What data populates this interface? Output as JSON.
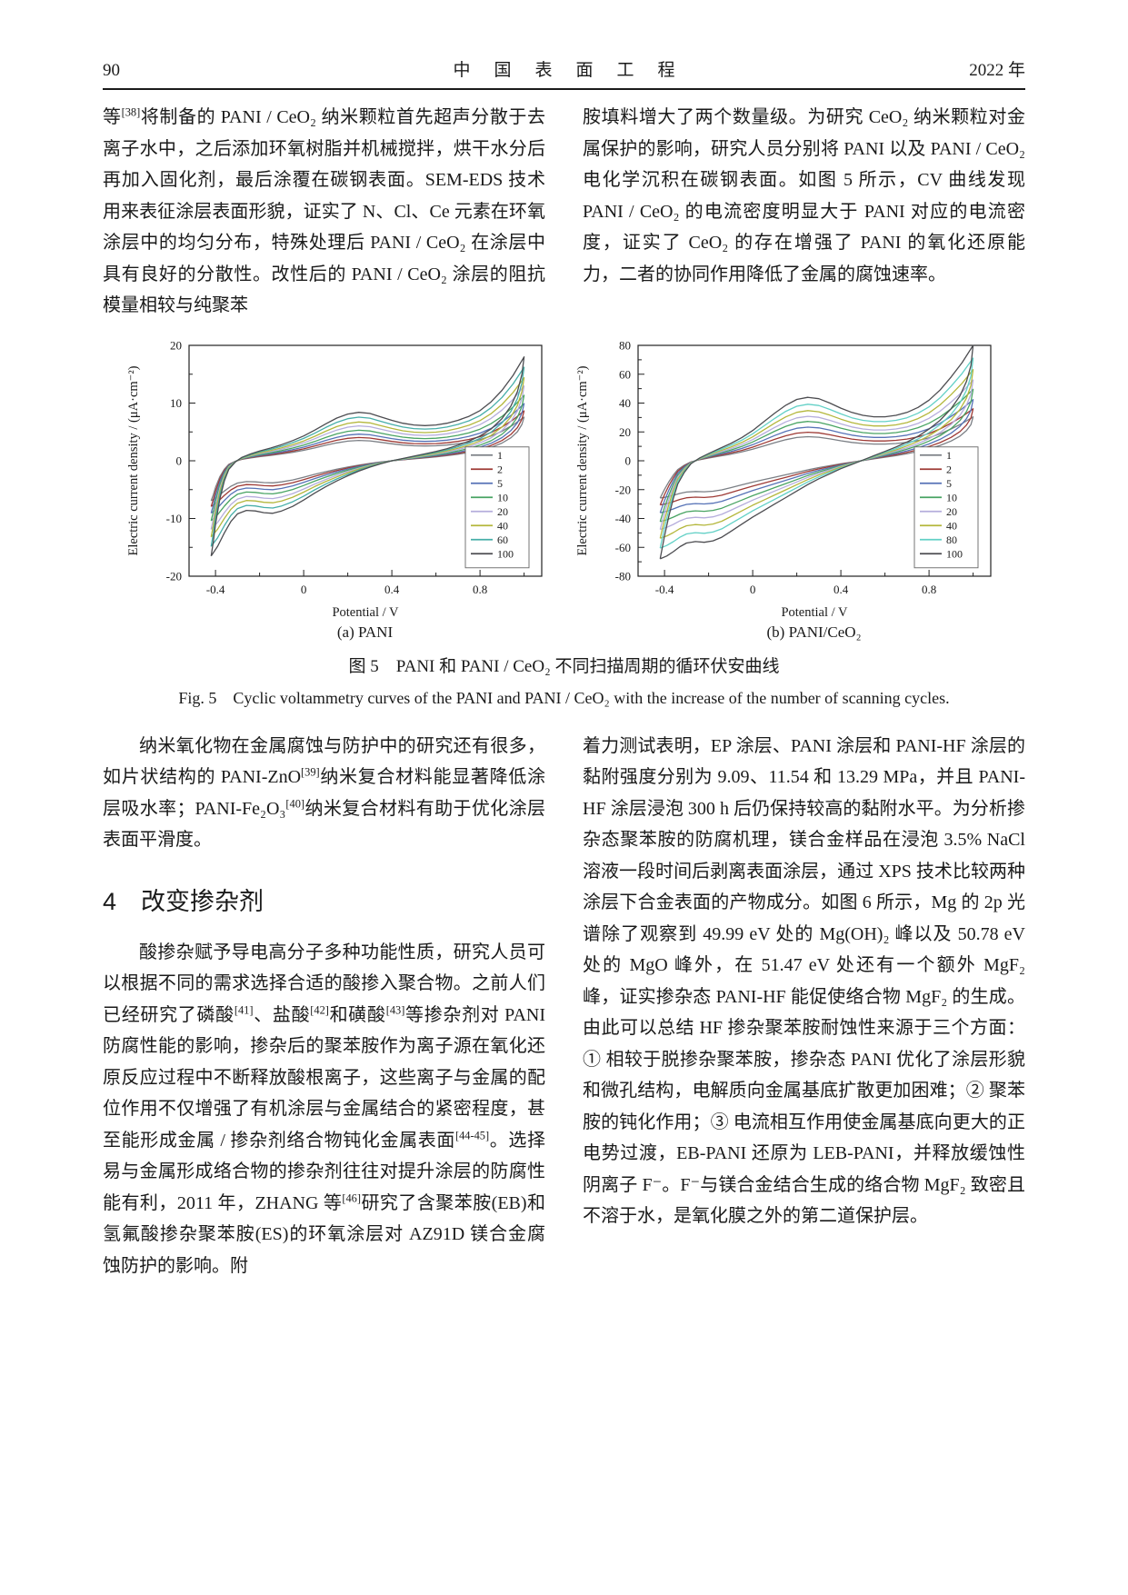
{
  "header": {
    "page_number": "90",
    "journal_title": "中国表面工程",
    "year": "2022 年"
  },
  "body": {
    "top_left": [
      [
        "等",
        ""
      ],
      [
        "[38]",
        "sup"
      ],
      [
        "将制备的 PANI / CeO₂ 纳米颗粒首先超声分散于去离子水中，之后添加环氧树脂并机械搅拌，烘干水分后再加入固化剂，最后涂覆在碳钢表面。SEM-EDS 技术用来表征涂层表面形貌，证实了 N、Cl、Ce 元素在环氧涂层中的均匀分布，特殊处理后 PANI / CeO₂ 在涂层中具有良好的分散性。改性后的 PANI / CeO₂ 涂层的阻抗模量相较与纯聚苯",
        ""
      ]
    ],
    "top_right": [
      [
        "胺填料增大了两个数量级。为研究 CeO₂ 纳米颗粒对金属保护的影响，研究人员分别将 PANI 以及 PANI / CeO₂ 电化学沉积在碳钢表面。如图 5 所示，CV 曲线发现 PANI / CeO₂ 的电流密度明显大于 PANI 对应的电流密度，证实了 CeO₂ 的存在增强了 PANI 的氧化还原能力，二者的协同作用降低了金属的腐蚀速率。",
        ""
      ]
    ],
    "mid_left": [
      [
        "纳米氧化物在金属腐蚀与防护中的研究还有很多，如片状结构的 PANI-ZnO",
        ""
      ],
      [
        "[39]",
        "sup"
      ],
      [
        "纳米复合材料能显著降低涂层吸水率；PANI-Fe₂O₃",
        ""
      ],
      [
        "[40]",
        "sup"
      ],
      [
        "纳米复合材料有助于优化涂层表面平滑度。",
        ""
      ]
    ],
    "section_heading": "4　改变掺杂剂",
    "bottom_left": [
      [
        "酸掺杂赋予导电高分子多种功能性质，研究人员可以根据不同的需求选择合适的酸掺入聚合物。之前人们已经研究了磷酸",
        ""
      ],
      [
        "[41]",
        "sup"
      ],
      [
        "、盐酸",
        ""
      ],
      [
        "[42]",
        "sup"
      ],
      [
        "和磺酸",
        ""
      ],
      [
        "[43]",
        "sup"
      ],
      [
        "等掺杂剂对 PANI 防腐性能的影响，掺杂后的聚苯胺作为离子源在氧化还原反应过程中不断释放酸根离子，这些离子与金属的配位作用不仅增强了有机涂层与金属结合的紧密程度，甚至能形成金属 / 掺杂剂络合物钝化金属表面",
        ""
      ],
      [
        "[44-45]",
        "sup"
      ],
      [
        "。选择易与金属形成络合物的掺杂剂往往对提升涂层的防腐性能有利，2011 年，ZHANG 等",
        ""
      ],
      [
        "[46]",
        "sup"
      ],
      [
        "研究了含聚苯胺(EB)和氢氟酸掺杂聚苯胺(ES)的环氧涂层对 AZ91D 镁合金腐蚀防护的影响。附",
        ""
      ]
    ],
    "bottom_right": [
      [
        "着力测试表明，EP 涂层、PANI 涂层和 PANI-HF 涂层的黏附强度分别为 9.09、11.54 和 13.29 MPa，并且 PANI-HF 涂层浸泡 300 h 后仍保持较高的黏附水平。为分析掺杂态聚苯胺的防腐机理，镁合金样品在浸泡 3.5% NaCl 溶液一段时间后剥离表面涂层，通过 XPS 技术比较两种涂层下合金表面的产物成分。如图 6 所示，Mg 的 2p 光谱除了观察到 49.99 eV 处的 Mg(OH)₂ 峰以及 50.78 eV 处的 MgO 峰外，在 51.47 eV 处还有一个额外 MgF₂ 峰，证实掺杂态 PANI-HF 能促使络合物 MgF₂ 的生成。由此可以总结 HF 掺杂聚苯胺耐蚀性来源于三个方面：① 相较于脱掺杂聚苯胺，掺杂态 PANI 优化了涂层形貌和微孔结构，电解质向金属基底扩散更加困难；② 聚苯胺的钝化作用；③ 电流相互作用使金属基底向更大的正电势过渡，EB-PANI 还原为 LEB-PANI，并释放缓蚀性阴离子 F⁻。F⁻与镁合金结合生成的络合物 MgF₂ 致密且不溶于水，是氧化膜之外的第二道保护层。",
        ""
      ]
    ]
  },
  "figure": {
    "caption_zh": "图 5　PANI 和 PANI / CeO₂ 不同扫描周期的循环伏安曲线",
    "caption_en": "Fig. 5　Cyclic voltammetry curves of the PANI and PANI / CeO₂ with the increase of the number of scanning cycles."
  },
  "chart_data": [
    {
      "type": "line",
      "subcaption": "(a) PANI",
      "xlabel": "Potential / V",
      "ylabel": "Electric current density / (μA·cm⁻²)",
      "xlim": [
        -0.52,
        1.08
      ],
      "ylim": [
        -20,
        20
      ],
      "xticks": [
        -0.4,
        0,
        0.4,
        0.8
      ],
      "yticks": [
        -20,
        -10,
        0,
        10,
        20
      ],
      "xminor": [
        -0.2,
        0.2,
        0.6,
        1.0
      ],
      "yminor": [
        -15,
        -5,
        5,
        15
      ],
      "legend_position": "right-center",
      "series": [
        {
          "name": "1",
          "color": "#7b7f85",
          "scale": 0.42
        },
        {
          "name": "2",
          "color": "#9e3a35",
          "scale": 0.48
        },
        {
          "name": "5",
          "color": "#5672b6",
          "scale": 0.55
        },
        {
          "name": "10",
          "color": "#49a463",
          "scale": 0.63
        },
        {
          "name": "20",
          "color": "#b5addc",
          "scale": 0.72
        },
        {
          "name": "40",
          "color": "#b4b73c",
          "scale": 0.8
        },
        {
          "name": "60",
          "color": "#46aea8",
          "scale": 0.9
        },
        {
          "name": "100",
          "color": "#4c4c50",
          "scale": 1.0
        }
      ],
      "base_loop": [
        [
          -0.42,
          -16.5
        ],
        [
          -0.41,
          -14
        ],
        [
          -0.4,
          -11
        ],
        [
          -0.38,
          -6.5
        ],
        [
          -0.36,
          -3.5
        ],
        [
          -0.34,
          -1.5
        ],
        [
          -0.31,
          -0.2
        ],
        [
          -0.28,
          0.6
        ],
        [
          -0.24,
          1.2
        ],
        [
          -0.2,
          1.7
        ],
        [
          -0.15,
          2.2
        ],
        [
          -0.1,
          2.8
        ],
        [
          -0.05,
          3.5
        ],
        [
          0.0,
          4.3
        ],
        [
          0.05,
          5.3
        ],
        [
          0.1,
          6.4
        ],
        [
          0.15,
          7.4
        ],
        [
          0.2,
          8.1
        ],
        [
          0.25,
          8.4
        ],
        [
          0.3,
          8.2
        ],
        [
          0.35,
          7.6
        ],
        [
          0.4,
          7.0
        ],
        [
          0.45,
          6.5
        ],
        [
          0.5,
          6.2
        ],
        [
          0.55,
          6.1
        ],
        [
          0.6,
          6.2
        ],
        [
          0.65,
          6.5
        ],
        [
          0.7,
          7.0
        ],
        [
          0.75,
          7.7
        ],
        [
          0.8,
          8.7
        ],
        [
          0.85,
          10.2
        ],
        [
          0.9,
          12.2
        ],
        [
          0.95,
          14.8
        ],
        [
          1.0,
          18.0
        ],
        [
          0.99,
          15.0
        ],
        [
          0.97,
          12.0
        ],
        [
          0.94,
          9.5
        ],
        [
          0.9,
          7.3
        ],
        [
          0.85,
          5.5
        ],
        [
          0.8,
          4.3
        ],
        [
          0.75,
          3.4
        ],
        [
          0.7,
          2.7
        ],
        [
          0.65,
          2.1
        ],
        [
          0.6,
          1.6
        ],
        [
          0.55,
          1.2
        ],
        [
          0.5,
          0.8
        ],
        [
          0.45,
          0.4
        ],
        [
          0.4,
          0.0
        ],
        [
          0.35,
          -0.5
        ],
        [
          0.3,
          -1.1
        ],
        [
          0.25,
          -1.8
        ],
        [
          0.2,
          -2.6
        ],
        [
          0.15,
          -3.5
        ],
        [
          0.1,
          -4.5
        ],
        [
          0.05,
          -5.6
        ],
        [
          0.0,
          -6.8
        ],
        [
          -0.05,
          -7.9
        ],
        [
          -0.1,
          -8.7
        ],
        [
          -0.14,
          -9.1
        ],
        [
          -0.18,
          -9.0
        ],
        [
          -0.22,
          -8.7
        ],
        [
          -0.26,
          -8.6
        ],
        [
          -0.3,
          -9.2
        ],
        [
          -0.33,
          -10.5
        ],
        [
          -0.36,
          -12.5
        ],
        [
          -0.39,
          -14.8
        ],
        [
          -0.42,
          -16.5
        ]
      ]
    },
    {
      "type": "line",
      "subcaption": "(b) PANI/CeO₂",
      "xlabel": "Potential / V",
      "ylabel": "Electric current density / (μA·cm⁻²)",
      "xlim": [
        -0.52,
        1.08
      ],
      "ylim": [
        -80,
        80
      ],
      "xticks": [
        -0.4,
        0,
        0.4,
        0.8
      ],
      "yticks": [
        -80,
        -60,
        -40,
        -20,
        0,
        20,
        40,
        60,
        80
      ],
      "xminor": [
        -0.2,
        0.2,
        0.6,
        1.0
      ],
      "yminor": [
        -70,
        -50,
        -30,
        -10,
        10,
        30,
        50,
        70
      ],
      "legend_position": "right-center",
      "series": [
        {
          "name": "1",
          "color": "#7b7f85",
          "scale": 0.38
        },
        {
          "name": "2",
          "color": "#9e3a35",
          "scale": 0.45
        },
        {
          "name": "5",
          "color": "#5672b6",
          "scale": 0.53
        },
        {
          "name": "10",
          "color": "#49a463",
          "scale": 0.62
        },
        {
          "name": "20",
          "color": "#b5addc",
          "scale": 0.7
        },
        {
          "name": "40",
          "color": "#b4b73c",
          "scale": 0.79
        },
        {
          "name": "80",
          "color": "#62d0c6",
          "scale": 0.89
        },
        {
          "name": "100",
          "color": "#4c4c50",
          "scale": 1.0
        }
      ],
      "base_loop": [
        [
          -0.42,
          -68
        ],
        [
          -0.41,
          -60
        ],
        [
          -0.4,
          -52
        ],
        [
          -0.38,
          -38
        ],
        [
          -0.36,
          -26
        ],
        [
          -0.34,
          -16
        ],
        [
          -0.31,
          -8
        ],
        [
          -0.28,
          -2
        ],
        [
          -0.24,
          2
        ],
        [
          -0.2,
          5
        ],
        [
          -0.15,
          8.5
        ],
        [
          -0.1,
          12
        ],
        [
          -0.05,
          16
        ],
        [
          0.0,
          21
        ],
        [
          0.05,
          27
        ],
        [
          0.1,
          33
        ],
        [
          0.15,
          38.5
        ],
        [
          0.2,
          42.5
        ],
        [
          0.25,
          44
        ],
        [
          0.3,
          43
        ],
        [
          0.35,
          40
        ],
        [
          0.4,
          36.5
        ],
        [
          0.45,
          33.5
        ],
        [
          0.5,
          31.5
        ],
        [
          0.55,
          30.5
        ],
        [
          0.6,
          30.5
        ],
        [
          0.65,
          31.5
        ],
        [
          0.7,
          33.5
        ],
        [
          0.75,
          37
        ],
        [
          0.8,
          42
        ],
        [
          0.85,
          49
        ],
        [
          0.9,
          58
        ],
        [
          0.95,
          68
        ],
        [
          1.0,
          80
        ],
        [
          0.99,
          66
        ],
        [
          0.97,
          55
        ],
        [
          0.94,
          45
        ],
        [
          0.9,
          36
        ],
        [
          0.85,
          28
        ],
        [
          0.8,
          22
        ],
        [
          0.75,
          17
        ],
        [
          0.7,
          13
        ],
        [
          0.65,
          9.5
        ],
        [
          0.6,
          6.5
        ],
        [
          0.55,
          3.5
        ],
        [
          0.5,
          0.5
        ],
        [
          0.45,
          -2.5
        ],
        [
          0.4,
          -5.5
        ],
        [
          0.35,
          -9
        ],
        [
          0.3,
          -12.5
        ],
        [
          0.25,
          -16.5
        ],
        [
          0.2,
          -21
        ],
        [
          0.15,
          -25.5
        ],
        [
          0.1,
          -30
        ],
        [
          0.05,
          -34.5
        ],
        [
          0.0,
          -39
        ],
        [
          -0.05,
          -44
        ],
        [
          -0.1,
          -49
        ],
        [
          -0.14,
          -53
        ],
        [
          -0.18,
          -55.5
        ],
        [
          -0.22,
          -56.5
        ],
        [
          -0.26,
          -56
        ],
        [
          -0.3,
          -57
        ],
        [
          -0.33,
          -59.5
        ],
        [
          -0.36,
          -63
        ],
        [
          -0.39,
          -66
        ],
        [
          -0.42,
          -68
        ]
      ]
    }
  ]
}
